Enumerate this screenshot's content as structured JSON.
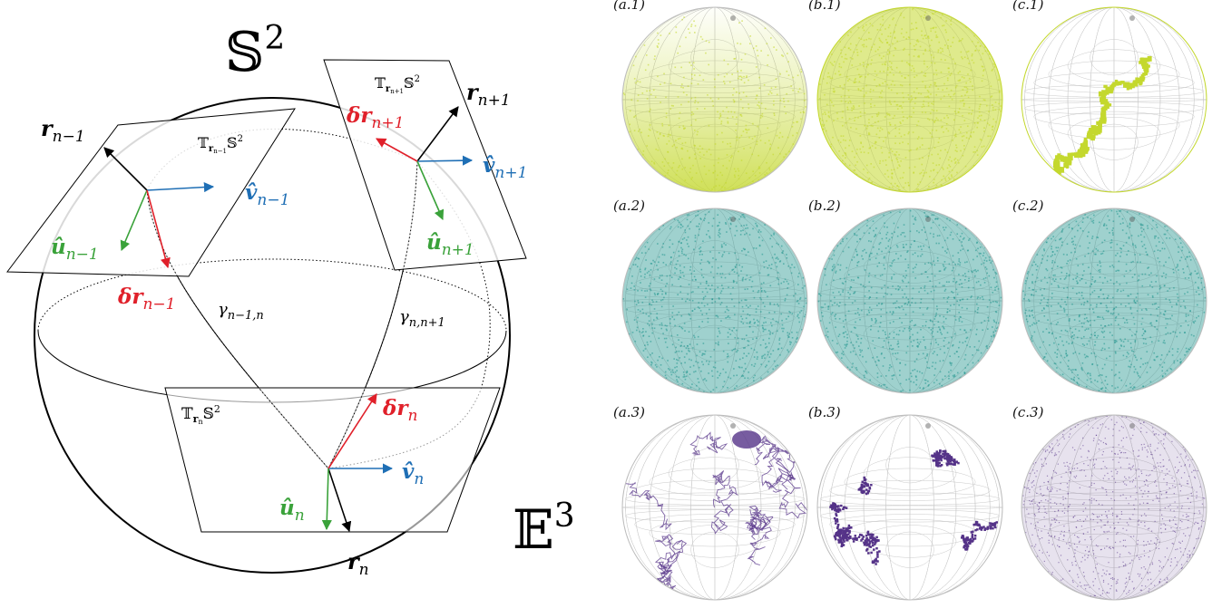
{
  "left": {
    "sphere_label": {
      "base": "𝕊",
      "sup": "2"
    },
    "space_label": {
      "base": "𝔼",
      "sup": "3"
    },
    "tangent_planes": [
      {
        "id": "n-1",
        "base": "𝕋",
        "sub": "r",
        "subsub": "n−1",
        "tail": "𝕊",
        "sup": "2"
      },
      {
        "id": "n+1",
        "base": "𝕋",
        "sub": "r",
        "subsub": "n+1",
        "tail": "𝕊",
        "sup": "2"
      },
      {
        "id": "n",
        "base": "𝕋",
        "sub": "r",
        "subsub": "n",
        "tail": "𝕊",
        "sup": "2"
      }
    ],
    "vectors": {
      "r_prev": {
        "main": "r",
        "sub": "n−1"
      },
      "r_next": {
        "main": "r",
        "sub": "n+1"
      },
      "r_n": {
        "main": "r",
        "sub": "n"
      },
      "v_prev": {
        "main": "v̂",
        "sub": "n−1"
      },
      "v_next": {
        "main": "v̂",
        "sub": "n+1"
      },
      "v_n": {
        "main": "v̂",
        "sub": "n"
      },
      "u_prev": {
        "main": "û",
        "sub": "n−1"
      },
      "u_next": {
        "main": "û",
        "sub": "n+1"
      },
      "u_n": {
        "main": "û",
        "sub": "n"
      },
      "dr_prev": {
        "main": "δr",
        "sub": "n−1"
      },
      "dr_next": {
        "main": "δr",
        "sub": "n+1"
      },
      "dr_n": {
        "main": "δr",
        "sub": "n"
      }
    },
    "geodesics": {
      "g1": {
        "main": "γ",
        "sub": "n−1,n"
      },
      "g2": {
        "main": "γ",
        "sub": "n,n+1"
      }
    },
    "colors": {
      "black": "#000000",
      "blue": "#1f6fb5",
      "green": "#3aa23a",
      "red": "#e0202a"
    }
  },
  "grid": {
    "rows": [
      {
        "color": "#c4d82e",
        "panels": [
          {
            "label": "(a.1)",
            "pattern": "bottom-heavy"
          },
          {
            "label": "(b.1)",
            "pattern": "uniform-dense"
          },
          {
            "label": "(c.1)",
            "pattern": "patch"
          }
        ]
      },
      {
        "color": "#2a9a92",
        "panels": [
          {
            "label": "(a.2)",
            "pattern": "uniform-dense"
          },
          {
            "label": "(b.2)",
            "pattern": "uniform-dense"
          },
          {
            "label": "(c.2)",
            "pattern": "uniform-dense"
          }
        ]
      },
      {
        "color": "#553388",
        "panels": [
          {
            "label": "(a.3)",
            "pattern": "walk-lines"
          },
          {
            "label": "(b.3)",
            "pattern": "clusters"
          },
          {
            "label": "(c.3)",
            "pattern": "uniform-light"
          }
        ]
      }
    ]
  }
}
